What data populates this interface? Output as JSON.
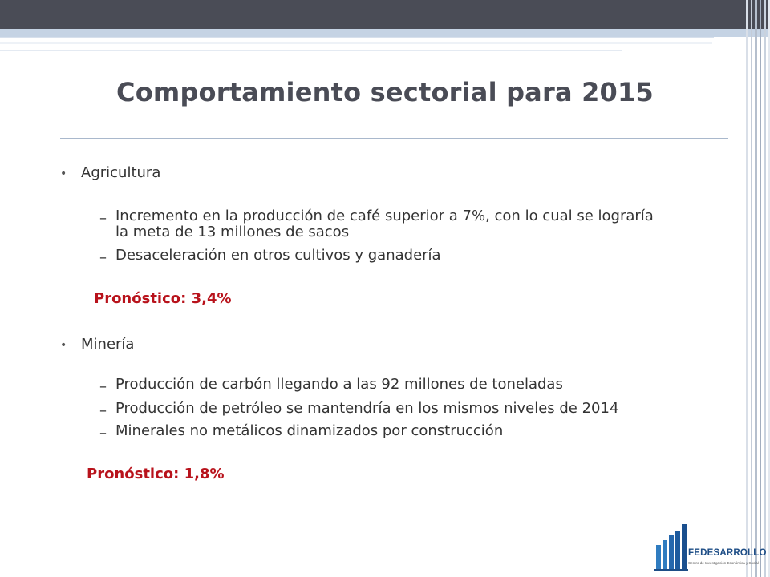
{
  "slide": {
    "title": "Comportamiento sectorial para 2015",
    "sections": [
      {
        "heading": "Agricultura",
        "items": [
          "Incremento en la producción de café superior a 7%, con lo cual se lograría",
          "la meta de 13 millones de sacos",
          "Desaceleración en otros cultivos y ganadería"
        ],
        "forecast": "Pronóstico: 3,4%"
      },
      {
        "heading": "Minería",
        "items": [
          "Producción de carbón llegando a las 92 millones de toneladas",
          "Producción de petróleo se mantendría en los mismos niveles de 2014",
          "Minerales no metálicos dinamizados por construcción"
        ],
        "forecast": "Pronóstico: 1,8%"
      }
    ],
    "bullet_char": "•",
    "dash_char": "–"
  },
  "logo": {
    "name": "FEDESARROLLO",
    "tagline": "Centro de Investigación Económica y Social"
  },
  "colors": {
    "title": "#4a4c56",
    "forecast": "#b8121b",
    "logo": "#1d4d86"
  }
}
